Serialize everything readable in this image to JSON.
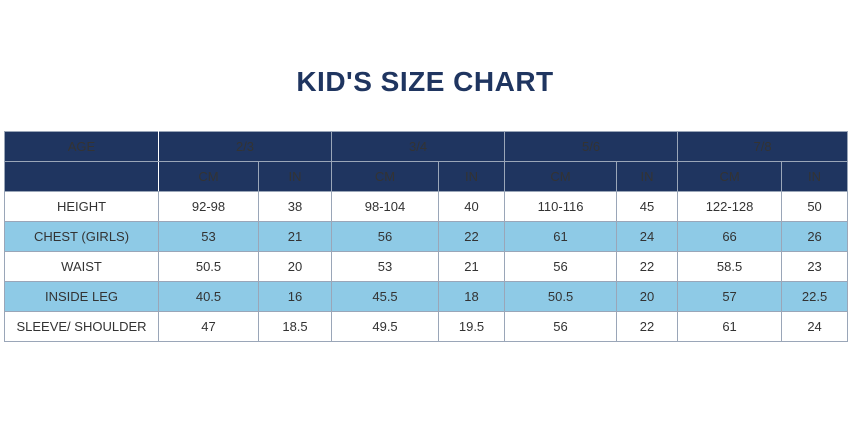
{
  "title": "KID'S SIZE CHART",
  "table": {
    "age_label": "AGE",
    "age_groups": [
      "2/3",
      "3/4",
      "5/6",
      "7/8"
    ],
    "units": [
      "CM",
      "IN"
    ],
    "rows": [
      {
        "label": "HEIGHT",
        "values": [
          "92-98",
          "38",
          "98-104",
          "40",
          "110-116",
          "45",
          "122-128",
          "50"
        ]
      },
      {
        "label": "CHEST (GIRLS)",
        "values": [
          "53",
          "21",
          "56",
          "22",
          "61",
          "24",
          "66",
          "26"
        ]
      },
      {
        "label": "WAIST",
        "values": [
          "50.5",
          "20",
          "53",
          "21",
          "56",
          "22",
          "58.5",
          "23"
        ]
      },
      {
        "label": "INSIDE LEG",
        "values": [
          "40.5",
          "16",
          "45.5",
          "18",
          "50.5",
          "20",
          "57",
          "22.5"
        ]
      },
      {
        "label": "SLEEVE/ SHOULDER",
        "values": [
          "47",
          "18.5",
          "49.5",
          "19.5",
          "56",
          "22",
          "61",
          "24"
        ]
      }
    ]
  },
  "colors": {
    "header_bg": "#1f3560",
    "alt_row_bg": "#8ecae6",
    "title_color": "#1f3560"
  }
}
